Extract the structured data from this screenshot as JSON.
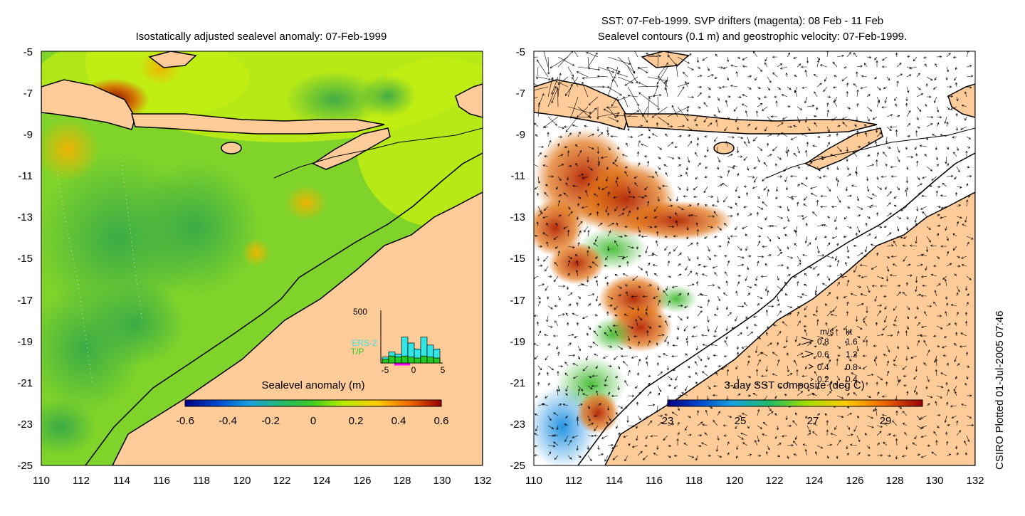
{
  "left_panel": {
    "title": "Isostatically adjusted sealevel anomaly: 07-Feb-1999",
    "y_ticks": [
      "-5",
      "-7",
      "-9",
      "-11",
      "-13",
      "-15",
      "-17",
      "-19",
      "-21",
      "-23",
      "-25"
    ],
    "x_ticks": [
      "110",
      "112",
      "114",
      "116",
      "118",
      "120",
      "122",
      "124",
      "126",
      "128",
      "130",
      "132"
    ],
    "colorbar": {
      "label": "Sealevel anomaly (m)",
      "ticks": [
        "-0.6",
        "-0.4",
        "-0.2",
        "0",
        "0.2",
        "0.4",
        "0.6"
      ],
      "range": [
        -0.6,
        0.6
      ]
    },
    "inset": {
      "top_label": "500",
      "series": [
        "ERS-2",
        "T/P"
      ],
      "x_ticks": [
        "-5",
        "0",
        "5"
      ],
      "ers2_counts": [
        60,
        110,
        90,
        260,
        200,
        140,
        260,
        180,
        140
      ],
      "tp_counts": [
        40,
        70,
        60,
        70,
        60,
        50,
        70,
        60,
        50
      ]
    }
  },
  "right_panel": {
    "title_line1": "SST: 07-Feb-1999. SVP drifters (magenta): 08 Feb - 11 Feb",
    "title_line2": "Sealevel contours (0.1 m) and geostrophic velocity: 07-Feb-1999.",
    "y_ticks": [
      "-5",
      "-7",
      "-9",
      "-11",
      "-13",
      "-15",
      "-17",
      "-19",
      "-21",
      "-23",
      "-25"
    ],
    "x_ticks": [
      "110",
      "112",
      "114",
      "116",
      "118",
      "120",
      "122",
      "124",
      "126",
      "128",
      "130",
      "132"
    ],
    "colorbar": {
      "label": "3-day SST composite (deg C)",
      "ticks": [
        "23",
        "25",
        "27",
        "29"
      ],
      "range": [
        23,
        30
      ]
    },
    "speed_legend": {
      "header_ms": "m/s",
      "header_kt": "kt",
      "rows": [
        {
          "ms": "0.8",
          "kt": "1.6"
        },
        {
          "ms": "0.6",
          "kt": "1.2"
        },
        {
          "ms": "0.4",
          "kt": "0.8"
        },
        {
          "ms": "0.2",
          "kt": "0.4"
        }
      ]
    }
  },
  "credit": "CSIRO Plotted 01-Jul-2005 07:46",
  "colors": {
    "land": "#ffcc99",
    "coast": "#000000",
    "sla_background": "#7fd32a",
    "ers2": "#33e5e5",
    "tp": "#22cc22",
    "drifters": "#ff00ff"
  }
}
